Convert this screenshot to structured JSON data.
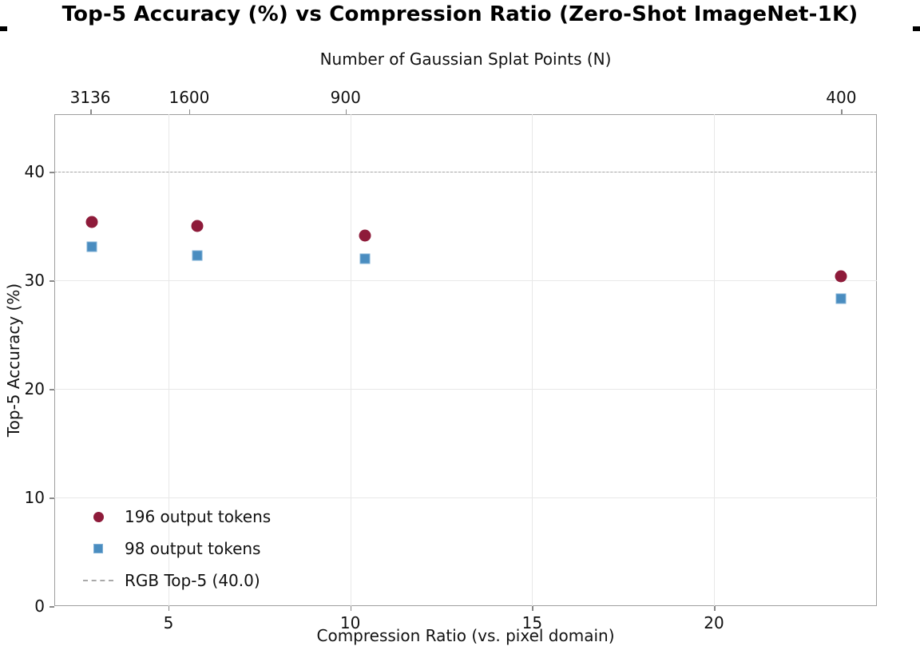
{
  "chart_data": {
    "type": "scatter",
    "title": "Top-5 Accuracy (%) vs Compression Ratio (Zero-Shot ImageNet-1K)",
    "x_axis": {
      "label": "Compression Ratio (vs. pixel domain)",
      "ticks": [
        5,
        10,
        15,
        20
      ],
      "xlim": [
        1.86,
        24.48
      ]
    },
    "y_axis": {
      "label": "Top-5 Accuracy (%)",
      "ticks": [
        0,
        10,
        20,
        30,
        40
      ],
      "ylim": [
        0,
        45.3
      ]
    },
    "top_axis": {
      "label": "Number of Gaussian Splat Points (N)",
      "ticks": [
        {
          "label": "3136",
          "x": 2.85
        },
        {
          "label": "1600",
          "x": 5.57
        },
        {
          "label": "900",
          "x": 9.87
        },
        {
          "label": "400",
          "x": 23.5
        }
      ]
    },
    "series": [
      {
        "name": "196 output tokens",
        "marker": "circle",
        "color": "#8e1b3a",
        "x": [
          2.9,
          5.8,
          10.4,
          23.5
        ],
        "y": [
          35.4,
          35.0,
          34.1,
          30.4
        ]
      },
      {
        "name": "98 output tokens",
        "marker": "square",
        "color": "#4a8dc0",
        "x": [
          2.9,
          5.8,
          10.4,
          23.5
        ],
        "y": [
          33.1,
          32.3,
          32.0,
          28.3
        ]
      }
    ],
    "reference_line": {
      "y": 40.0,
      "label": "RGB Top-5 (40.0)",
      "color": "#a6a6a6",
      "style": "dashed"
    },
    "legend": {
      "position": "lower-left"
    },
    "grid": true
  }
}
